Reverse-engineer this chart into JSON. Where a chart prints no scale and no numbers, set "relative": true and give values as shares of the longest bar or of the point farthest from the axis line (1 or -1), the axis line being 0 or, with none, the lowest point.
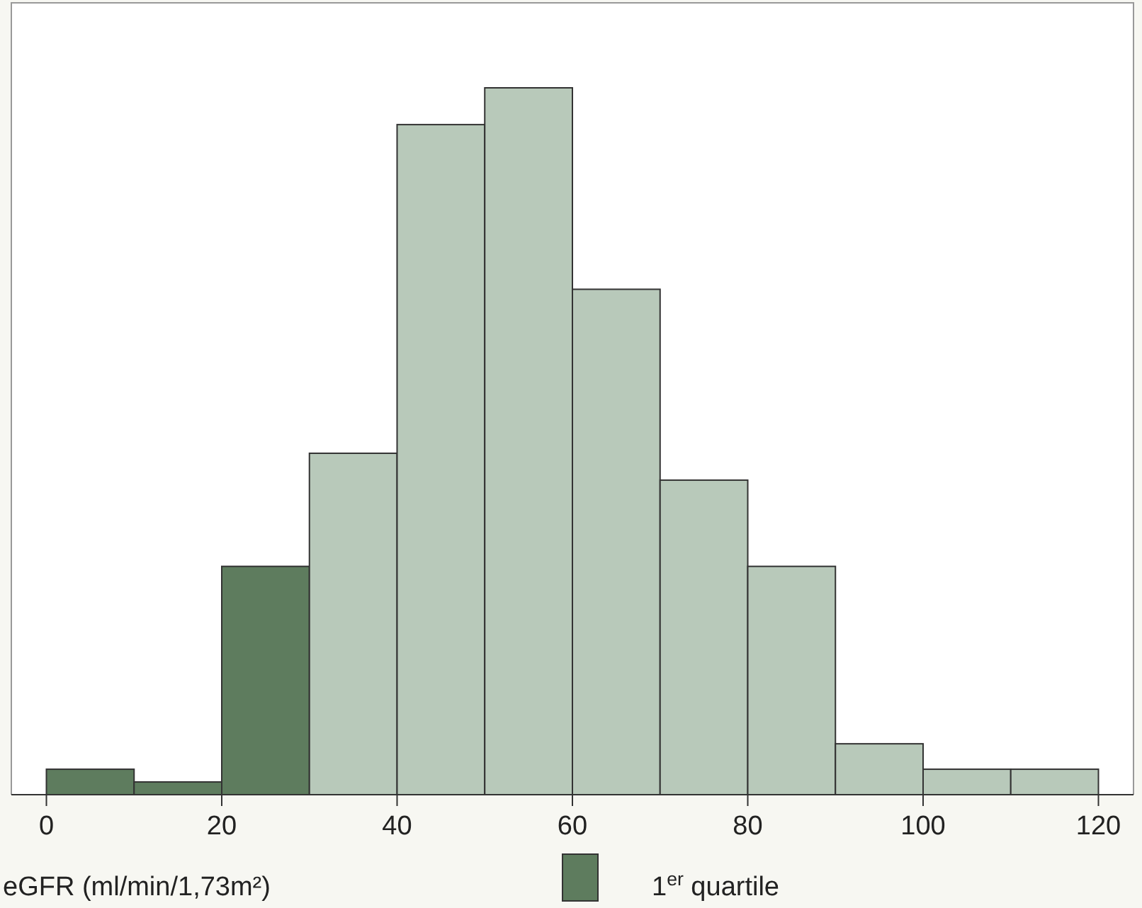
{
  "chart_data": {
    "type": "bar",
    "relative": true,
    "xlabel": "eGFR (ml/min/1,73m²)",
    "x": [
      5,
      15,
      25,
      35,
      45,
      55,
      65,
      75,
      85,
      95,
      105,
      115
    ],
    "xlim": [
      -4,
      124
    ],
    "xticks": [
      0,
      20,
      40,
      60,
      80,
      100,
      120
    ],
    "values": [
      0.036,
      0.018,
      0.323,
      0.483,
      0.948,
      1,
      0.715,
      0.445,
      0.323,
      0.072,
      0.036,
      0.036
    ],
    "colors": [
      "#5e7c5e",
      "#5e7c5e",
      "#5e7c5e",
      "#b8c9ba",
      "#b8c9ba",
      "#b8c9ba",
      "#b8c9ba",
      "#b8c9ba",
      "#b8c9ba",
      "#b8c9ba",
      "#b8c9ba",
      "#b8c9ba"
    ],
    "annotations": [
      "1$^{er}$ quartile"
    ]
  }
}
